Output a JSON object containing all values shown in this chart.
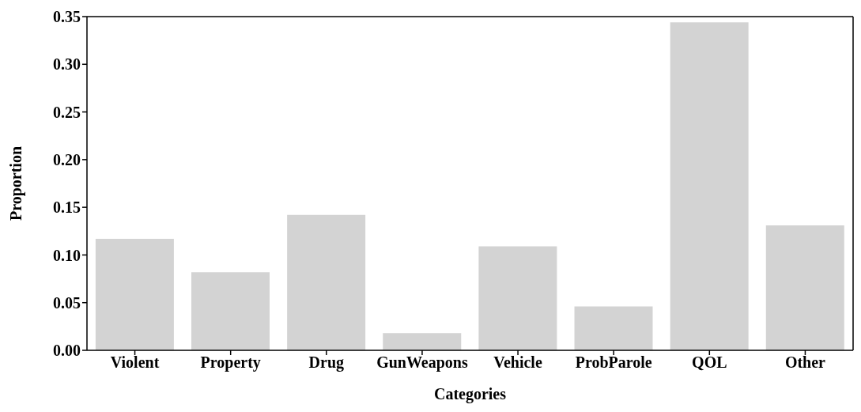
{
  "chart_data": {
    "type": "bar",
    "xlabel": "Categories",
    "ylabel": "Proportion",
    "categories": [
      "Violent",
      "Property",
      "Drug",
      "GunWeapons",
      "Vehicle",
      "ProbParole",
      "QOL",
      "Other"
    ],
    "values": [
      0.117,
      0.082,
      0.142,
      0.018,
      0.109,
      0.046,
      0.344,
      0.131
    ],
    "color": "#d3d3d3",
    "ylim": [
      0,
      0.35
    ],
    "yticks": [
      {
        "value": 0,
        "label": "0.00"
      },
      0.05,
      {
        "value": 0.1,
        "label": "0.10"
      },
      0.15,
      {
        "value": 0.2,
        "label": "0.20"
      },
      0.25,
      {
        "value": 0.3,
        "label": "0.30"
      },
      0.35
    ],
    "grid": false,
    "legend": false
  }
}
